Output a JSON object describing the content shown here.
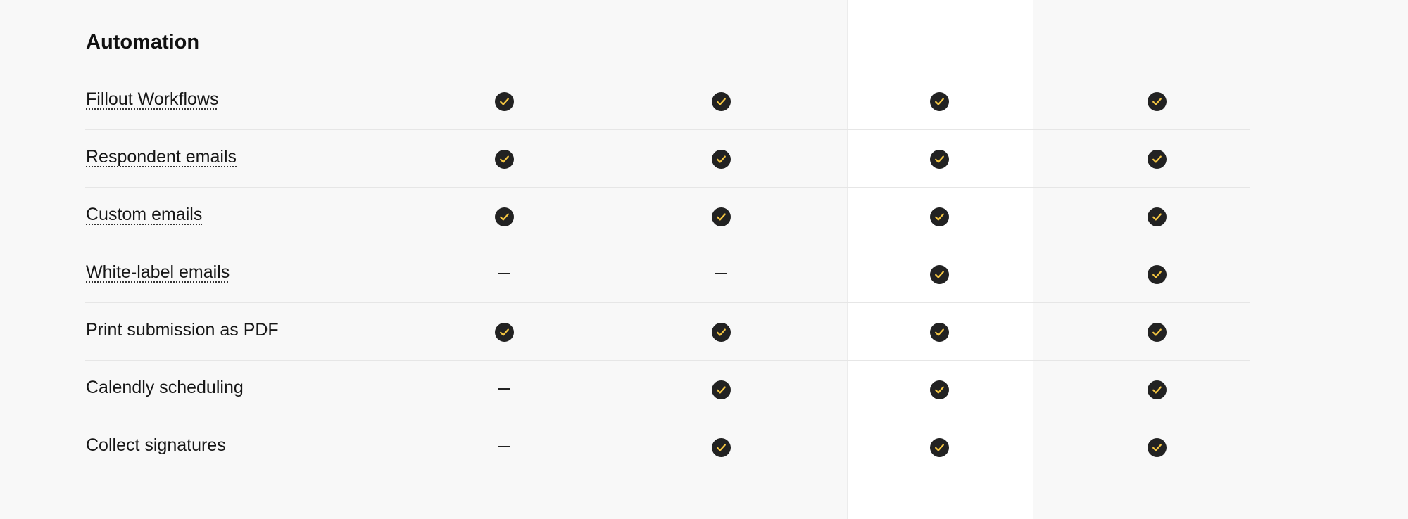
{
  "section": {
    "title": "Automation"
  },
  "colors": {
    "check_fill": "#222222",
    "check_mark": "#f4c542",
    "highlight_column": "#ffffff",
    "background": "#f8f8f8"
  },
  "icons": {
    "included": "check-circle-icon",
    "not_included": "dash-icon"
  },
  "rows": [
    {
      "label": "Fillout Workflows",
      "tooltip": true,
      "values": [
        true,
        true,
        true,
        true
      ]
    },
    {
      "label": "Respondent emails",
      "tooltip": true,
      "values": [
        true,
        true,
        true,
        true
      ]
    },
    {
      "label": "Custom emails",
      "tooltip": true,
      "values": [
        true,
        true,
        true,
        true
      ]
    },
    {
      "label": "White-label emails",
      "tooltip": true,
      "values": [
        false,
        false,
        true,
        true
      ]
    },
    {
      "label": "Print submission as PDF",
      "tooltip": false,
      "values": [
        true,
        true,
        true,
        true
      ]
    },
    {
      "label": "Calendly scheduling",
      "tooltip": false,
      "values": [
        false,
        true,
        true,
        true
      ]
    },
    {
      "label": "Collect signatures",
      "tooltip": false,
      "values": [
        false,
        true,
        true,
        true
      ]
    }
  ]
}
